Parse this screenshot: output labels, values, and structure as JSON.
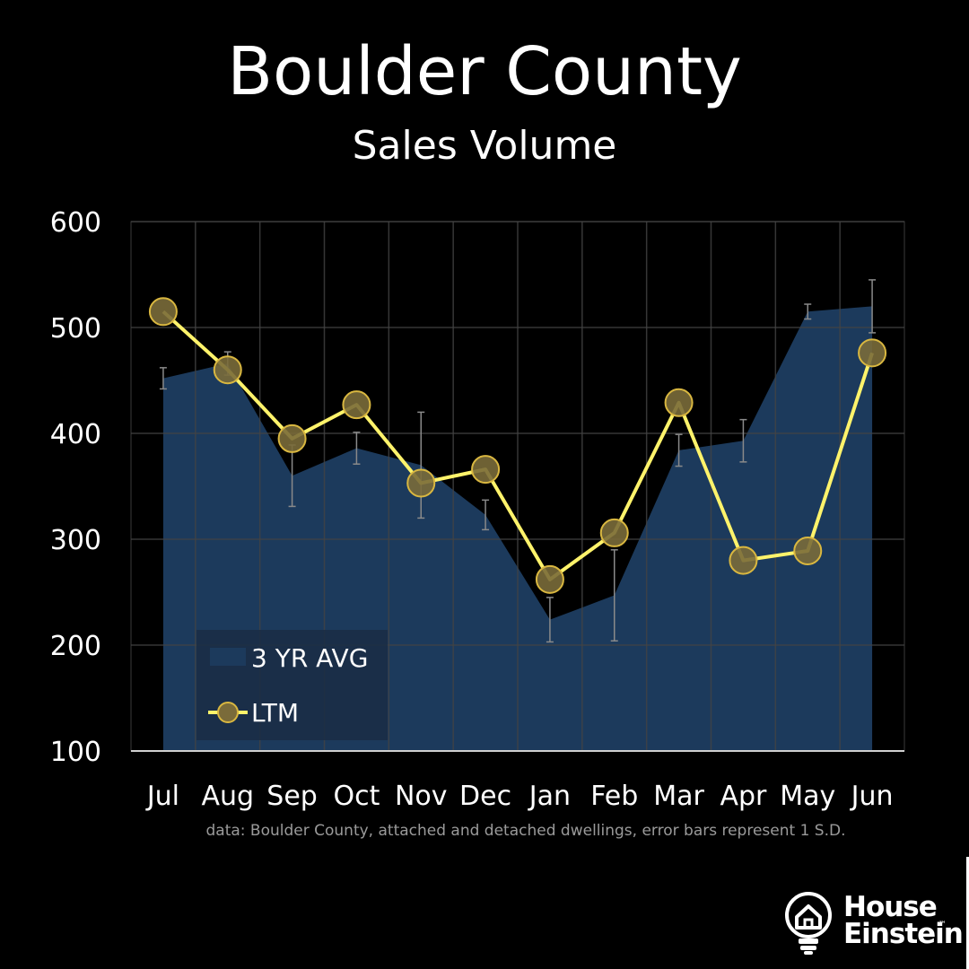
{
  "header": {
    "title": "Boulder County",
    "subtitle": "Sales Volume"
  },
  "footnote": "data: Boulder County, attached and detached dwellings, error bars represent 1 S.D.",
  "logo": {
    "line1": "House",
    "line2": "Einstein",
    "trademark": "™",
    "icon": "lightbulb-house-icon"
  },
  "colors": {
    "background": "#000000",
    "area": "#1c3a5c",
    "line": "#fff36b",
    "marker_fill": "#7a6b3a",
    "marker_stroke": "#d9b740",
    "error_bar": "#8a8a8a",
    "grid": "#3a3a3a"
  },
  "chart_data": {
    "type": "area",
    "categories": [
      "Jul",
      "Aug",
      "Sep",
      "Oct",
      "Nov",
      "Dec",
      "Jan",
      "Feb",
      "Mar",
      "Apr",
      "May",
      "Jun"
    ],
    "ylim": [
      100,
      600
    ],
    "yticks": [
      100,
      200,
      300,
      400,
      500,
      600
    ],
    "grid": true,
    "legend_position": "bottom-left",
    "series": [
      {
        "name": "3 YR AVG",
        "kind": "area",
        "values": [
          452,
          466,
          360,
          386,
          370,
          323,
          224,
          247,
          384,
          393,
          515,
          520
        ],
        "error": [
          10,
          11,
          29,
          15,
          50,
          14,
          21,
          43,
          15,
          20,
          7,
          25
        ]
      },
      {
        "name": "LTM",
        "kind": "line",
        "values": [
          515,
          460,
          395,
          427,
          353,
          366,
          262,
          306,
          429,
          280,
          289,
          476
        ]
      }
    ]
  }
}
